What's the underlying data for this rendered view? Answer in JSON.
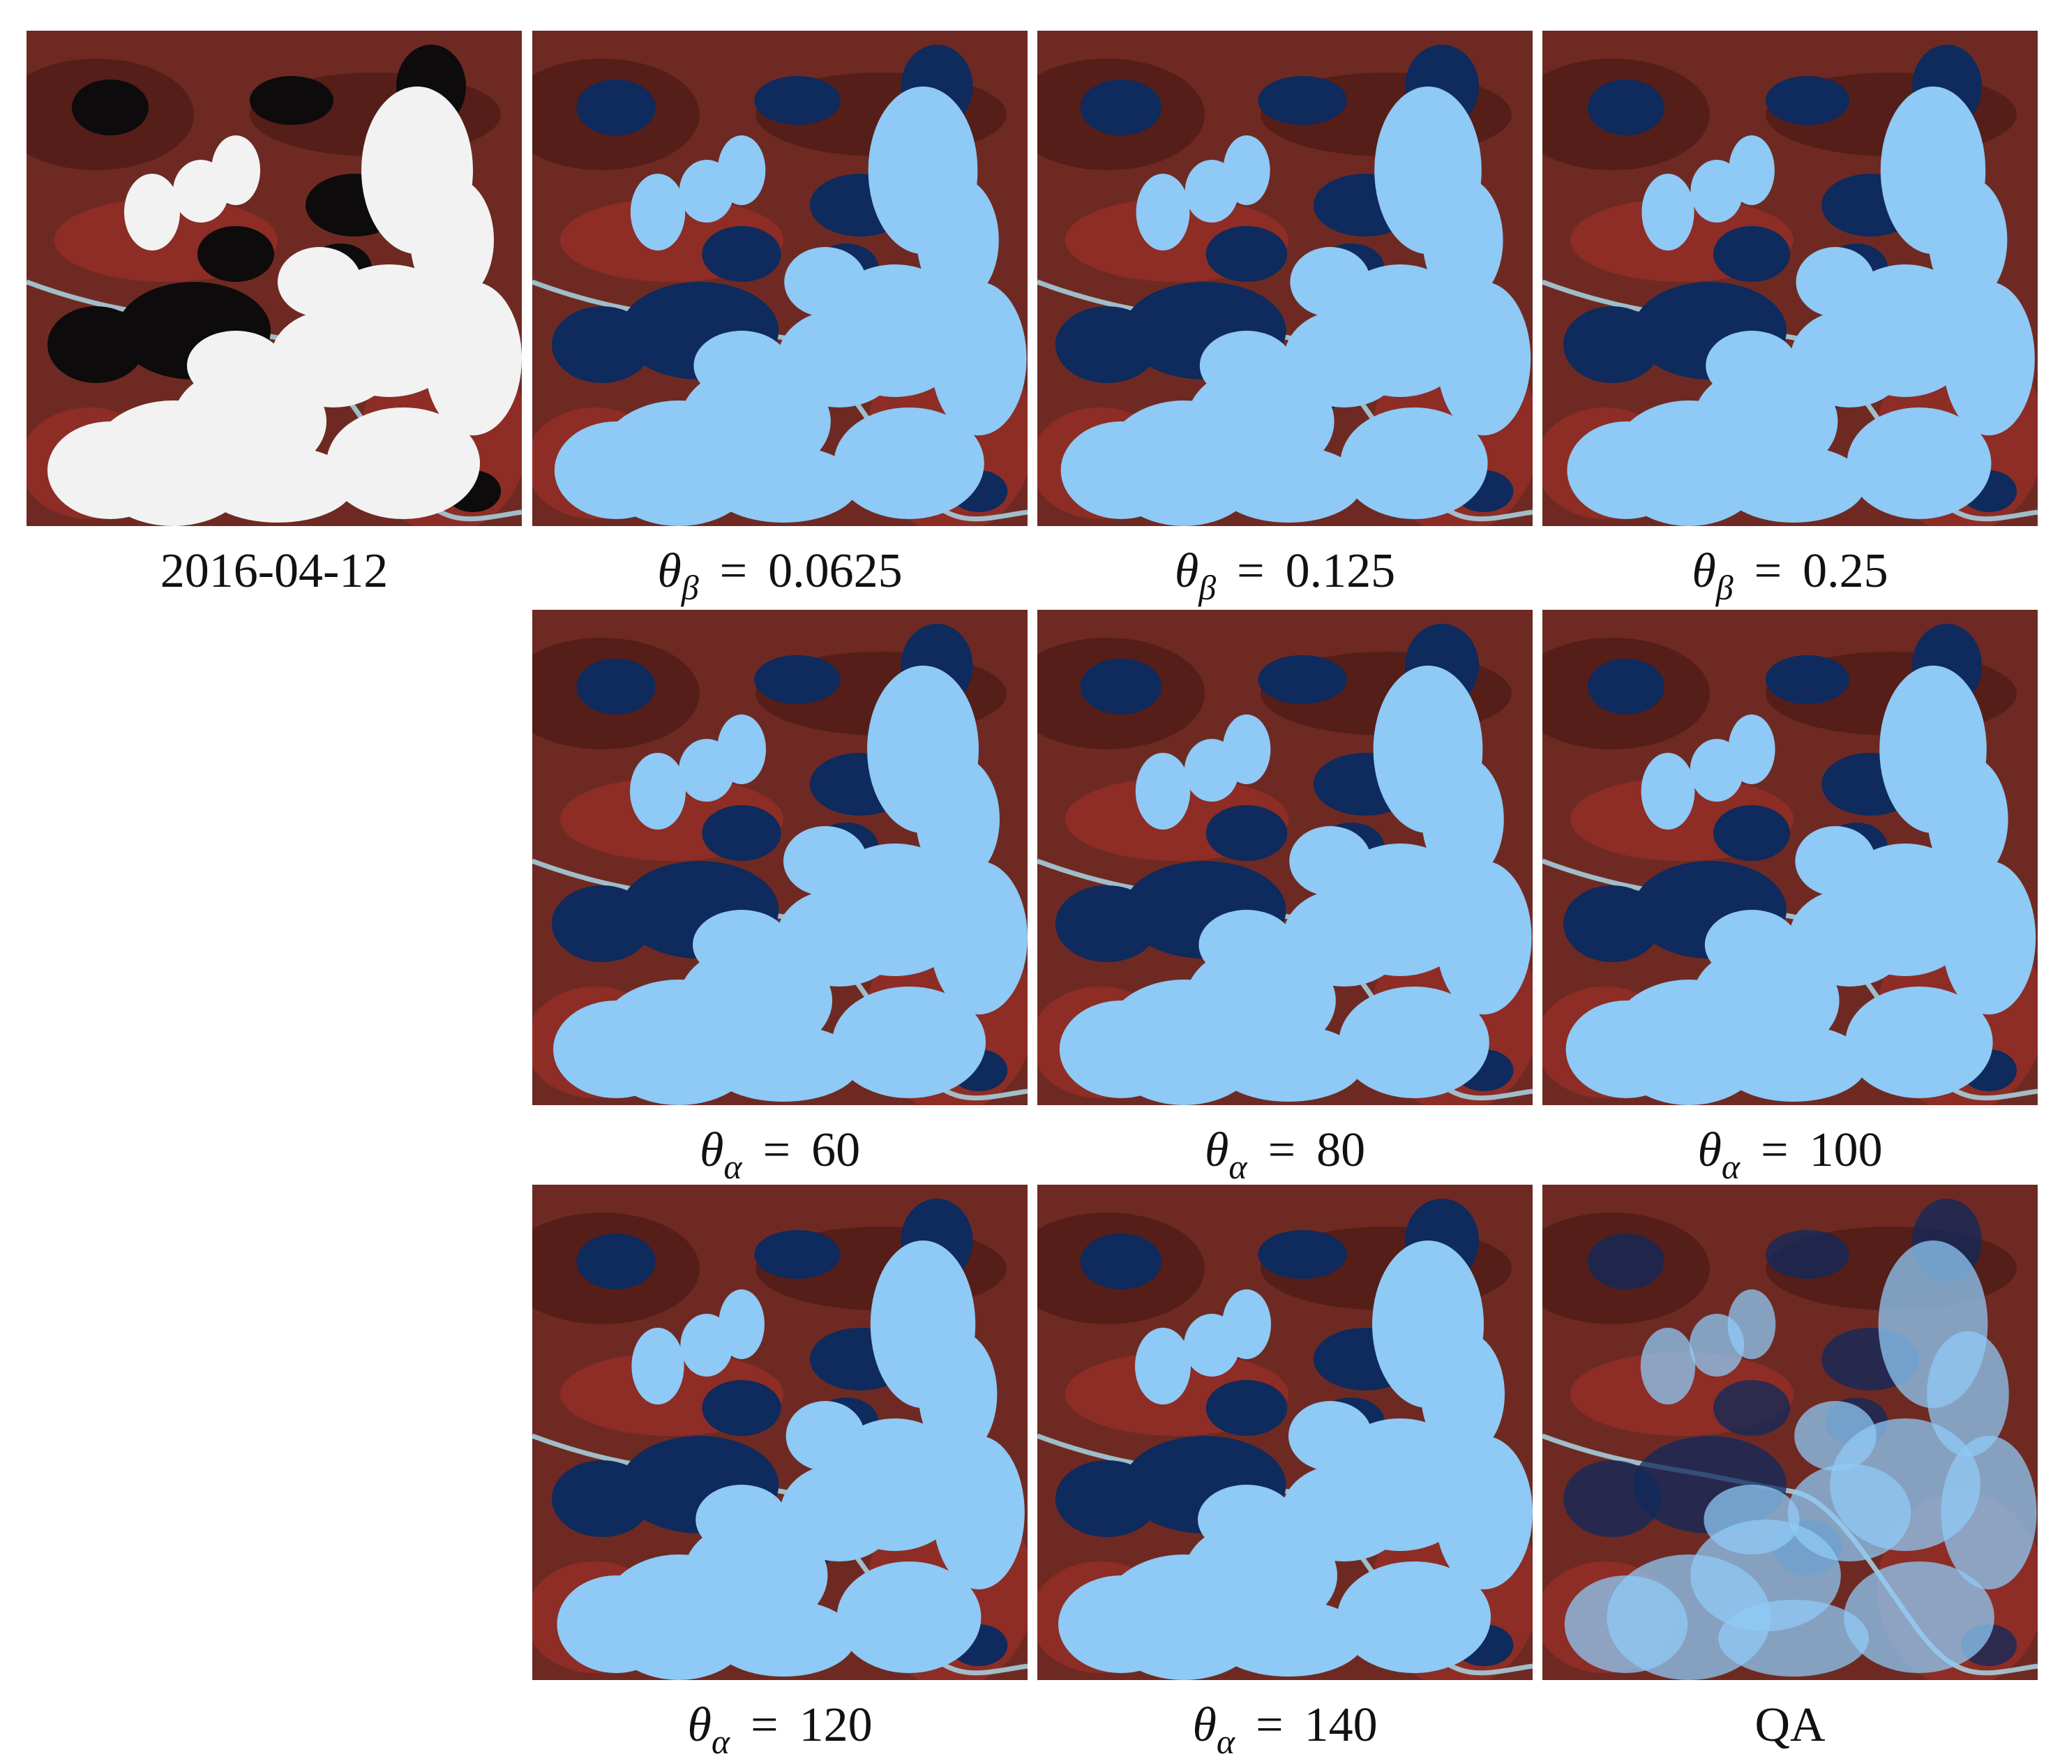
{
  "panels": [
    {
      "id": "orig",
      "caption": {
        "text": "2016-04-12"
      },
      "style": "original"
    },
    {
      "id": "b1",
      "caption": {
        "symbol": "θ",
        "sub": "β",
        "eq": "=",
        "value": "0.0625"
      },
      "style": "mask"
    },
    {
      "id": "b2",
      "caption": {
        "symbol": "θ",
        "sub": "β",
        "eq": "=",
        "value": "0.125"
      },
      "style": "mask"
    },
    {
      "id": "b3",
      "caption": {
        "symbol": "θ",
        "sub": "β",
        "eq": "=",
        "value": "0.25"
      },
      "style": "mask"
    },
    {
      "id": "a1",
      "caption": {
        "symbol": "θ",
        "sub": "α",
        "eq": "=",
        "value": "60"
      },
      "style": "mask"
    },
    {
      "id": "a2",
      "caption": {
        "symbol": "θ",
        "sub": "α",
        "eq": "=",
        "value": "80"
      },
      "style": "mask"
    },
    {
      "id": "a3",
      "caption": {
        "symbol": "θ",
        "sub": "α",
        "eq": "=",
        "value": "100"
      },
      "style": "mask"
    },
    {
      "id": "a4",
      "caption": {
        "symbol": "θ",
        "sub": "α",
        "eq": "=",
        "value": "120"
      },
      "style": "mask"
    },
    {
      "id": "a5",
      "caption": {
        "symbol": "θ",
        "sub": "α",
        "eq": "=",
        "value": "140"
      },
      "style": "mask"
    },
    {
      "id": "qa",
      "caption": {
        "text": "QA"
      },
      "style": "qa"
    }
  ],
  "colors": {
    "terrain": "#6e2a22",
    "terrain_dark": "#4a1a16",
    "terrain_red": "#9a2f26",
    "cloud_original": "#f2f2f2",
    "shadow_original": "#0d0b0c",
    "cloud_mask": "#8fc9f5",
    "shadow_mask": "#0f2a5c",
    "river": "#a9d7e6"
  }
}
